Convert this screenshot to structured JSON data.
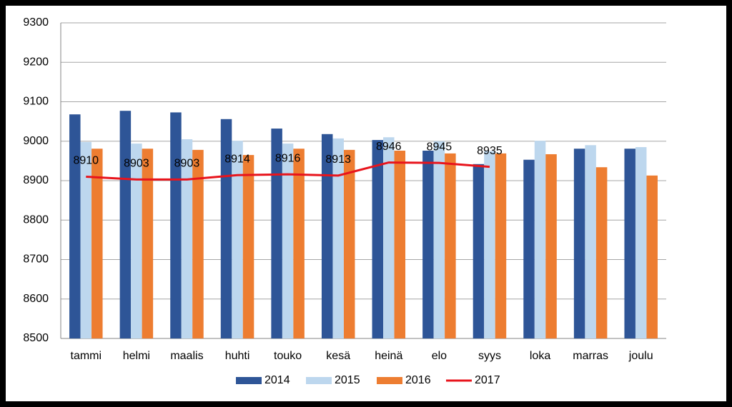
{
  "chart_data": {
    "type": "bar-line",
    "categories": [
      "tammi",
      "helmi",
      "maalis",
      "huhti",
      "touko",
      "kesä",
      "heinä",
      "elo",
      "syys",
      "loka",
      "marras",
      "joulu"
    ],
    "series": [
      {
        "name": "2014",
        "type": "bar",
        "color": "#2e5597",
        "values": [
          9068,
          9077,
          9073,
          9056,
          9032,
          9018,
          9003,
          8976,
          8942,
          8953,
          8981,
          8981
        ]
      },
      {
        "name": "2015",
        "type": "bar",
        "color": "#bdd7ee",
        "values": [
          8998,
          8994,
          9005,
          9001,
          8994,
          9007,
          9010,
          9000,
          8975,
          9001,
          8990,
          8985
        ]
      },
      {
        "name": "2016",
        "type": "bar",
        "color": "#ed7d31",
        "values": [
          8981,
          8981,
          8978,
          8965,
          8981,
          8978,
          8976,
          8969,
          8969,
          8967,
          8934,
          8913
        ]
      },
      {
        "name": "2017",
        "type": "line",
        "color": "#e8141c",
        "values": [
          8910,
          8903,
          8903,
          8914,
          8916,
          8913,
          8946,
          8945,
          8935,
          null,
          null,
          null
        ]
      }
    ],
    "ylim": [
      8500,
      9300
    ],
    "yticks": [
      8500,
      8600,
      8700,
      8800,
      8900,
      9000,
      9100,
      9200,
      9300
    ],
    "grid": true,
    "legend": "bottom"
  }
}
